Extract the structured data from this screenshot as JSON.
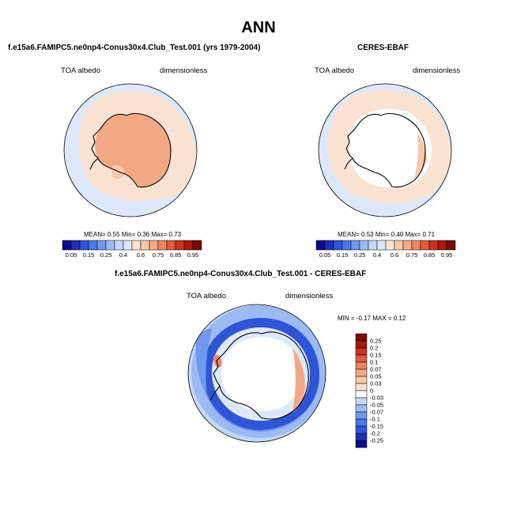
{
  "figure": {
    "title": "ANN"
  },
  "panels": {
    "model": {
      "title": "f.e15a6.FAMIPC5.ne0np4-Conus30x4.Club_Test.001 (yrs 1979-2004)",
      "left_label": "TOA albedo",
      "right_label": "dimensionless",
      "stats": {
        "mean_label": "MEAN=",
        "mean": "0.55",
        "min_label": "Min=",
        "min": "0.36",
        "max_label": "Max=",
        "max": "0.73"
      }
    },
    "obs": {
      "title": "CERES-EBAF",
      "left_label": "TOA albedo",
      "right_label": "dimensionless",
      "stats": {
        "mean_label": "MEAN=",
        "mean": "0.53",
        "min_label": "Min=",
        "min": "0.40",
        "max_label": "Max=",
        "max": "0.71"
      }
    },
    "diff": {
      "title": "f.e15a6.FAMIPC5.ne0np4-Conus30x4.Club_Test.001 - CERES-EBAF",
      "left_label": "TOA albedo",
      "right_label": "dimensionless",
      "range_text": "MIN = -0.17 MAX = 0.12"
    }
  },
  "chart_data": [
    {
      "type": "heatmap",
      "projection": "south-polar-stereographic",
      "title": "f.e15a6.FAMIPC5.ne0np4-Conus30x4.Club_Test.001 (yrs 1979-2004)",
      "variable": "TOA albedo",
      "units": "dimensionless",
      "mean": 0.55,
      "min": 0.36,
      "max": 0.73,
      "colorbar": {
        "orientation": "horizontal",
        "levels": [
          0.05,
          0.1,
          0.15,
          0.2,
          0.25,
          0.3,
          0.4,
          0.5,
          0.6,
          0.7,
          0.75,
          0.8,
          0.85,
          0.9,
          0.95
        ],
        "tick_labels": [
          "0.05",
          "0.15",
          "0.25",
          "0.4",
          "0.6",
          "0.75",
          "0.85",
          "0.95"
        ],
        "colors": [
          "#0b0b8c",
          "#1f2fb5",
          "#2f55d6",
          "#4a78e6",
          "#6f98ee",
          "#9cbaf3",
          "#c5d8f7",
          "#dde9fa",
          "#fbe3d3",
          "#f7c8ab",
          "#f3a985",
          "#ec8663",
          "#df5b3c",
          "#c8321f",
          "#a41810",
          "#7b0a06"
        ]
      }
    },
    {
      "type": "heatmap",
      "projection": "south-polar-stereographic",
      "title": "CERES-EBAF",
      "variable": "TOA albedo",
      "units": "dimensionless",
      "mean": 0.53,
      "min": 0.4,
      "max": 0.71,
      "colorbar": {
        "orientation": "horizontal",
        "levels": [
          0.05,
          0.1,
          0.15,
          0.2,
          0.25,
          0.3,
          0.4,
          0.5,
          0.6,
          0.7,
          0.75,
          0.8,
          0.85,
          0.9,
          0.95
        ],
        "tick_labels": [
          "0.05",
          "0.15",
          "0.25",
          "0.4",
          "0.6",
          "0.75",
          "0.85",
          "0.95"
        ],
        "colors": [
          "#0b0b8c",
          "#1f2fb5",
          "#2f55d6",
          "#4a78e6",
          "#6f98ee",
          "#9cbaf3",
          "#c5d8f7",
          "#dde9fa",
          "#fbe3d3",
          "#f7c8ab",
          "#f3a985",
          "#ec8663",
          "#df5b3c",
          "#c8321f",
          "#a41810",
          "#7b0a06"
        ]
      }
    },
    {
      "type": "heatmap",
      "projection": "south-polar-stereographic",
      "title": "f.e15a6.FAMIPC5.ne0np4-Conus30x4.Club_Test.001 - CERES-EBAF",
      "variable": "TOA albedo",
      "units": "dimensionless",
      "min": -0.17,
      "max": 0.12,
      "colorbar": {
        "orientation": "vertical",
        "levels": [
          -0.25,
          -0.2,
          -0.15,
          -0.1,
          -0.07,
          -0.05,
          -0.03,
          0,
          0.03,
          0.05,
          0.07,
          0.1,
          0.15,
          0.2,
          0.25
        ],
        "tick_labels": [
          "-0.25",
          "-0.2",
          "-0.15",
          "-0.1",
          "-0.07",
          "-0.05",
          "-0.03",
          "0",
          "0.03",
          "0.05",
          "0.07",
          "0.1",
          "0.15",
          "0.2",
          "0.25"
        ],
        "colors": [
          "#0b0b8c",
          "#1f2fb5",
          "#2f55d6",
          "#4a78e6",
          "#6f98ee",
          "#9cbaf3",
          "#c5d8f7",
          "#ffffff",
          "#fbe3d3",
          "#f7c8ab",
          "#f3a985",
          "#ec8663",
          "#df5b3c",
          "#c8321f",
          "#a41810",
          "#7b0a06"
        ]
      }
    }
  ]
}
